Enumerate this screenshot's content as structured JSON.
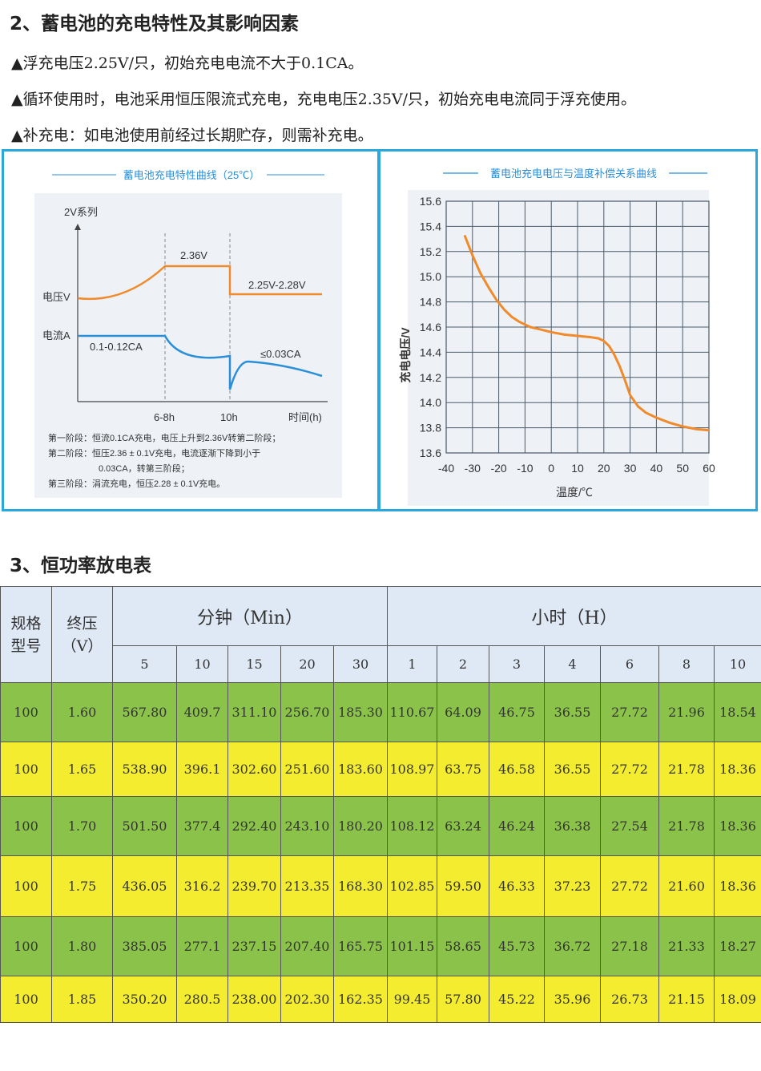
{
  "section2": {
    "title": "2、蓄电池的充电特性及其影响因素",
    "bullets": [
      "▲浮充电压2.25V/只，初始充电电流不大于0.1CA。",
      "▲循环使用时，电池采用恒压限流式充电，充电电压2.35V/只，初始充电电流同于浮充使用。",
      "▲补充电：如电池使用前经过长期贮存，则需补充电。"
    ]
  },
  "left_chart": {
    "title": "蓄电池充电特性曲线（25℃）",
    "series_label": "2V系列",
    "ylabel_voltage": "电压V",
    "ylabel_current": "电流A",
    "label_236": "2.36V",
    "label_225": "2.25V-2.28V",
    "label_current_range": "0.1-0.12CA",
    "label_003": "≤0.03CA",
    "x_ticks": [
      "6-8h",
      "10h"
    ],
    "xlabel": "时间(h)",
    "notes": [
      "第一阶段：恒流0.1CA充电，电压上升到2.36V转第二阶段；",
      "第二阶段：恒压2.36 ± 0.1V充电，电流逐渐下降到小于",
      "0.03CA，转第三阶段；",
      "第三阶段：涓流充电，恒压2.28 ± 0.1V充电。"
    ],
    "colors": {
      "voltage": "#f08a2b",
      "current": "#2a8fd8",
      "panel": "#eef2f7"
    }
  },
  "chart_data": {
    "type": "line",
    "title": "蓄电池充电电压与温度补偿关系曲线",
    "xlabel": "温度/℃",
    "ylabel": "充电电压/V",
    "x_ticks": [
      "-40",
      "-30",
      "-20",
      "-10",
      "0",
      "10",
      "20",
      "30",
      "40",
      "50",
      "60"
    ],
    "y_ticks": [
      "13.6",
      "13.8",
      "14.0",
      "14.2",
      "14.4",
      "14.6",
      "14.8",
      "15.0",
      "15.2",
      "15.4",
      "15.6"
    ],
    "x_gridlines": [
      -40,
      -30,
      -20,
      -10,
      0,
      10,
      20,
      30,
      40,
      50,
      60
    ],
    "xlim": [
      -40,
      60
    ],
    "ylim": [
      13.6,
      15.6
    ],
    "grid": true,
    "series": [
      {
        "x": [
          -33,
          -30,
          -27,
          -24,
          -21,
          -18,
          -15,
          -12,
          -8,
          -4,
          0,
          5,
          10,
          15,
          18,
          20,
          22,
          24,
          26,
          28,
          30,
          33,
          36,
          40,
          45,
          50,
          55,
          60
        ],
        "y": [
          15.33,
          15.17,
          15.03,
          14.92,
          14.82,
          14.74,
          14.68,
          14.64,
          14.6,
          14.58,
          14.56,
          14.54,
          14.53,
          14.52,
          14.51,
          14.49,
          14.45,
          14.38,
          14.29,
          14.18,
          14.06,
          13.97,
          13.92,
          13.88,
          13.84,
          13.81,
          13.79,
          13.78
        ],
        "color": "#f08a2b"
      }
    ]
  },
  "section3": {
    "title": "3、恒功率放电表",
    "header": {
      "col_model": "规格型号",
      "col_model_l1": "规格",
      "col_model_l2": "型号",
      "col_end_l1": "终压",
      "col_end_l2": "（V）",
      "group_min": "分钟（Min）",
      "group_hour": "小时（H）",
      "sub": [
        "5",
        "10",
        "15",
        "20",
        "30",
        "1",
        "2",
        "3",
        "4",
        "6",
        "8",
        "10"
      ]
    },
    "rows": [
      {
        "model": "100",
        "end": "1.60",
        "vals": [
          "567.80",
          "409.7",
          "311.10",
          "256.70",
          "185.30",
          "110.67",
          "64.09",
          "46.75",
          "36.55",
          "27.72",
          "21.96",
          "18.54"
        ]
      },
      {
        "model": "100",
        "end": "1.65",
        "vals": [
          "538.90",
          "396.1",
          "302.60",
          "251.60",
          "183.60",
          "108.97",
          "63.75",
          "46.58",
          "36.55",
          "27.72",
          "21.78",
          "18.36"
        ]
      },
      {
        "model": "100",
        "end": "1.70",
        "vals": [
          "501.50",
          "377.4",
          "292.40",
          "243.10",
          "180.20",
          "108.12",
          "63.24",
          "46.24",
          "36.38",
          "27.54",
          "21.78",
          "18.36"
        ]
      },
      {
        "model": "100",
        "end": "1.75",
        "vals": [
          "436.05",
          "316.2",
          "239.70",
          "213.35",
          "168.30",
          "102.85",
          "59.50",
          "46.33",
          "37.23",
          "27.72",
          "21.60",
          "18.36"
        ]
      },
      {
        "model": "100",
        "end": "1.80",
        "vals": [
          "385.05",
          "277.1",
          "237.15",
          "207.40",
          "165.75",
          "101.15",
          "58.65",
          "45.73",
          "36.72",
          "27.18",
          "21.33",
          "18.27"
        ]
      },
      {
        "model": "100",
        "end": "1.85",
        "vals": [
          "350.20",
          "280.5",
          "238.00",
          "202.30",
          "162.35",
          "99.45",
          "57.80",
          "45.22",
          "35.96",
          "26.73",
          "21.15",
          "18.09"
        ]
      }
    ]
  }
}
